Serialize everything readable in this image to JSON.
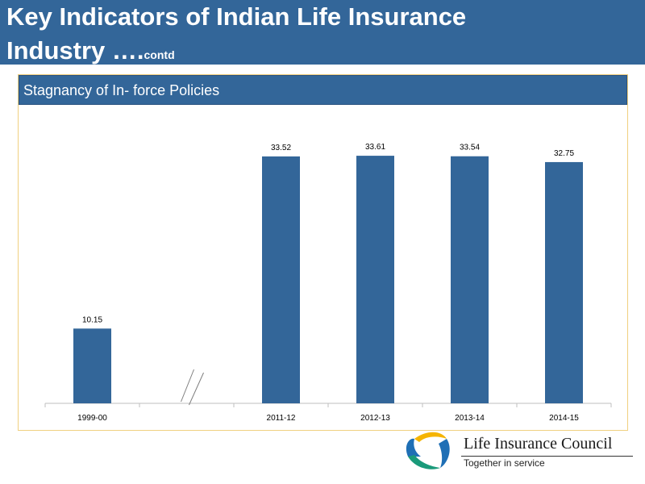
{
  "slide": {
    "title_line1": "Key Indicators of Indian Life Insurance",
    "title_line2": "Industry ….",
    "title_suffix": "contd"
  },
  "logo": {
    "name": "Life Insurance Council",
    "tagline": "Together in service"
  },
  "colors": {
    "title_bar": "#336699",
    "bar": "#336699",
    "frame_border": "#f0d080"
  },
  "chart_data": {
    "type": "bar",
    "title": "Stagnancy of In- force Policies",
    "categories": [
      "1999-00",
      "",
      "2011-12",
      "2012-13",
      "2013-14",
      "2014-15"
    ],
    "values": [
      10.15,
      null,
      33.52,
      33.61,
      33.54,
      32.75
    ],
    "value_labels": [
      "10.15",
      "",
      "33.52",
      "33.61",
      "33.54",
      "32.75"
    ],
    "axis_break": "between 1999-00 and 2011-12",
    "ylim": [
      0,
      38
    ],
    "y_axis_shown": false,
    "grid": false,
    "legend": "none"
  }
}
